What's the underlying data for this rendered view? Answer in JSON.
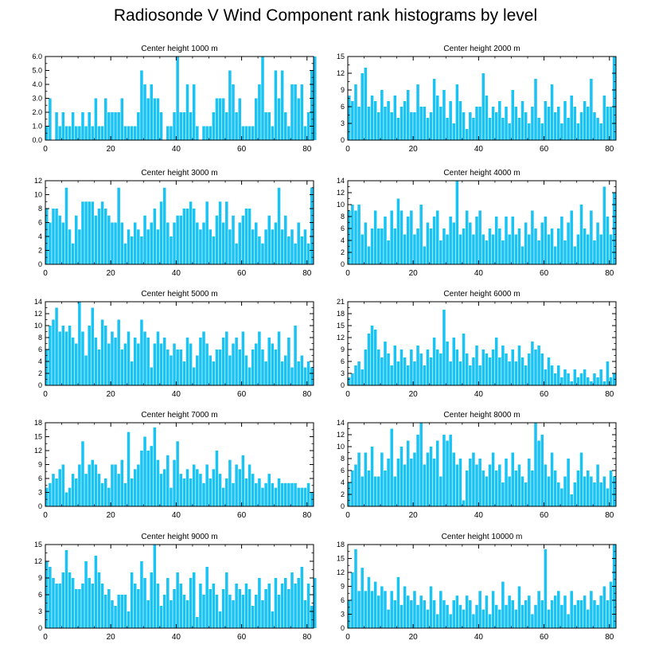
{
  "title": "Radiosonde V Wind Component rank histograms by level",
  "colors": {
    "bar": "#19c3f3",
    "axis": "#000000",
    "background": "#ffffff"
  },
  "chart_data": [
    {
      "type": "bar",
      "title": "Center height 1000 m",
      "xlim": [
        0,
        82
      ],
      "ylim": [
        0,
        6
      ],
      "xticks": [
        0,
        20,
        40,
        60,
        80
      ],
      "yticks": [
        "0.0",
        "1.0",
        "2.0",
        "3.0",
        "4.0",
        "5.0",
        "6.0"
      ],
      "values": [
        1,
        3,
        0,
        2,
        1,
        2,
        1,
        1,
        2,
        1,
        1,
        2,
        1,
        2,
        1,
        3,
        1,
        1,
        3,
        2,
        2,
        2,
        2,
        3,
        1,
        1,
        1,
        1,
        2,
        5,
        4,
        3,
        4,
        3,
        3,
        2,
        0,
        1,
        1,
        2,
        6,
        2,
        2,
        4,
        2,
        4,
        1,
        0,
        1,
        1,
        1,
        2,
        3,
        3,
        3,
        2,
        5,
        4,
        2,
        3,
        1,
        1,
        1,
        1,
        3,
        4,
        6,
        2,
        2,
        1,
        5,
        3,
        5,
        2,
        1,
        4,
        4,
        3,
        4,
        1,
        2,
        5,
        6
      ]
    },
    {
      "type": "bar",
      "title": "Center height 2000 m",
      "xlim": [
        0,
        82
      ],
      "ylim": [
        0,
        15
      ],
      "xticks": [
        0,
        20,
        40,
        60,
        80
      ],
      "yticks": [
        "0",
        "3",
        "6",
        "9",
        "12",
        "15"
      ],
      "values": [
        8,
        7,
        10,
        6,
        12,
        13,
        6,
        8,
        7,
        5,
        9,
        6,
        7,
        5,
        8,
        4,
        6,
        7,
        9,
        5,
        5,
        10,
        6,
        6,
        4,
        5,
        11,
        8,
        6,
        9,
        4,
        7,
        3,
        10,
        7,
        5,
        2,
        5,
        4,
        6,
        6,
        12,
        8,
        4,
        6,
        5,
        7,
        4,
        6,
        3,
        9,
        6,
        4,
        7,
        5,
        3,
        6,
        11,
        4,
        3,
        7,
        6,
        10,
        5,
        6,
        3,
        7,
        4,
        8,
        6,
        3,
        5,
        7,
        6,
        11,
        5,
        4,
        3,
        8,
        6,
        6,
        15
      ]
    },
    {
      "type": "bar",
      "title": "Center height 3000 m",
      "xlim": [
        0,
        82
      ],
      "ylim": [
        0,
        12
      ],
      "xticks": [
        0,
        20,
        40,
        60,
        80
      ],
      "yticks": [
        "0",
        "2",
        "4",
        "6",
        "8",
        "10",
        "12"
      ],
      "values": [
        8,
        6,
        8,
        8,
        7,
        6,
        11,
        5,
        3,
        7,
        5,
        9,
        9,
        9,
        9,
        7,
        8,
        9,
        8,
        7,
        6,
        6,
        11,
        6,
        3,
        5,
        4,
        6,
        5,
        4,
        7,
        5,
        6,
        8,
        5,
        9,
        11,
        6,
        4,
        6,
        7,
        7,
        8,
        8,
        9,
        8,
        6,
        5,
        6,
        9,
        5,
        4,
        7,
        9,
        6,
        9,
        5,
        7,
        3,
        6,
        7,
        8,
        8,
        5,
        6,
        4,
        3,
        5,
        7,
        5,
        6,
        11,
        5,
        7,
        4,
        5,
        3,
        6,
        4,
        5,
        3,
        11
      ]
    },
    {
      "type": "bar",
      "title": "Center height 4000 m",
      "xlim": [
        0,
        82
      ],
      "ylim": [
        0,
        14
      ],
      "xticks": [
        0,
        20,
        40,
        60,
        80
      ],
      "yticks": [
        "0",
        "2",
        "4",
        "6",
        "8",
        "10",
        "12",
        "14"
      ],
      "values": [
        9,
        10,
        9,
        10,
        5,
        7,
        3,
        6,
        9,
        6,
        6,
        8,
        4,
        9,
        6,
        11,
        9,
        5,
        8,
        9,
        5,
        6,
        10,
        3,
        7,
        6,
        8,
        9,
        4,
        6,
        5,
        8,
        7,
        14,
        5,
        6,
        9,
        7,
        5,
        8,
        9,
        5,
        4,
        6,
        5,
        8,
        6,
        4,
        8,
        5,
        8,
        5,
        6,
        3,
        7,
        5,
        9,
        6,
        4,
        7,
        8,
        5,
        6,
        3,
        6,
        8,
        4,
        7,
        9,
        3,
        5,
        10,
        6,
        5,
        9,
        4,
        7,
        5,
        13,
        8,
        5,
        12
      ]
    },
    {
      "type": "bar",
      "title": "Center height 5000 m",
      "xlim": [
        0,
        82
      ],
      "ylim": [
        0,
        14
      ],
      "xticks": [
        0,
        20,
        40,
        60,
        80
      ],
      "yticks": [
        "0",
        "2",
        "4",
        "6",
        "8",
        "10",
        "12",
        "14"
      ],
      "values": [
        6,
        10,
        11,
        13,
        9,
        10,
        9,
        10,
        8,
        7,
        14,
        9,
        5,
        10,
        13,
        8,
        6,
        11,
        10,
        7,
        9,
        8,
        11,
        6,
        7,
        9,
        4,
        8,
        7,
        11,
        9,
        8,
        3,
        7,
        9,
        7,
        8,
        6,
        5,
        7,
        6,
        6,
        4,
        8,
        7,
        3,
        5,
        8,
        9,
        7,
        5,
        4,
        6,
        6,
        8,
        9,
        5,
        7,
        8,
        6,
        9,
        5,
        3,
        6,
        7,
        9,
        6,
        4,
        8,
        7,
        6,
        9,
        4,
        5,
        8,
        3,
        10,
        4,
        5,
        3,
        4,
        3
      ]
    },
    {
      "type": "bar",
      "title": "Center height 6000 m",
      "xlim": [
        0,
        82
      ],
      "ylim": [
        0,
        21
      ],
      "xticks": [
        0,
        20,
        40,
        60,
        80
      ],
      "yticks": [
        "0",
        "3",
        "6",
        "9",
        "12",
        "15",
        "18",
        "21"
      ],
      "values": [
        2,
        3,
        5,
        6,
        4,
        9,
        13,
        15,
        14,
        9,
        7,
        11,
        8,
        5,
        10,
        6,
        9,
        7,
        5,
        9,
        6,
        10,
        8,
        5,
        9,
        7,
        12,
        9,
        8,
        19,
        11,
        6,
        12,
        9,
        6,
        13,
        8,
        5,
        7,
        10,
        5,
        9,
        8,
        7,
        9,
        12,
        7,
        10,
        8,
        6,
        9,
        6,
        10,
        7,
        5,
        8,
        11,
        9,
        10,
        8,
        4,
        7,
        5,
        3,
        5,
        2,
        4,
        3,
        1,
        4,
        2,
        3,
        4,
        2,
        1,
        3,
        2,
        4,
        1,
        6,
        2,
        3
      ]
    },
    {
      "type": "bar",
      "title": "Center height 7000 m",
      "xlim": [
        0,
        82
      ],
      "ylim": [
        0,
        18
      ],
      "xticks": [
        0,
        20,
        40,
        60,
        80
      ],
      "yticks": [
        "0",
        "3",
        "6",
        "9",
        "12",
        "15",
        "18"
      ],
      "values": [
        4,
        5,
        7,
        6,
        8,
        9,
        3,
        4,
        7,
        6,
        9,
        14,
        7,
        9,
        10,
        9,
        7,
        5,
        6,
        4,
        9,
        9,
        7,
        10,
        5,
        16,
        6,
        8,
        9,
        12,
        15,
        12,
        13,
        17,
        10,
        7,
        8,
        11,
        4,
        10,
        14,
        7,
        6,
        8,
        6,
        9,
        8,
        7,
        5,
        9,
        6,
        8,
        12,
        7,
        4,
        6,
        10,
        5,
        9,
        8,
        11,
        6,
        9,
        7,
        5,
        6,
        4,
        5,
        7,
        5,
        4,
        6,
        5,
        5,
        5,
        5,
        5,
        4,
        4,
        4,
        5,
        3
      ]
    },
    {
      "type": "bar",
      "title": "Center height 8000 m",
      "xlim": [
        0,
        82
      ],
      "ylim": [
        0,
        14
      ],
      "xticks": [
        0,
        20,
        40,
        60,
        80
      ],
      "yticks": [
        "0",
        "2",
        "4",
        "6",
        "8",
        "10",
        "12",
        "14"
      ],
      "values": [
        4,
        6,
        7,
        9,
        5,
        9,
        6,
        10,
        5,
        5,
        9,
        6,
        8,
        13,
        5,
        8,
        10,
        7,
        11,
        8,
        9,
        12,
        14,
        7,
        9,
        10,
        8,
        11,
        5,
        12,
        11,
        12,
        9,
        7,
        8,
        1,
        6,
        8,
        9,
        7,
        8,
        6,
        5,
        7,
        9,
        6,
        7,
        4,
        8,
        5,
        9,
        6,
        7,
        5,
        4,
        8,
        6,
        14,
        11,
        12,
        7,
        5,
        9,
        6,
        4,
        3,
        5,
        8,
        2,
        4,
        6,
        9,
        5,
        6,
        5,
        4,
        7,
        4,
        5,
        3,
        6,
        5
      ]
    },
    {
      "type": "bar",
      "title": "Center height 9000 m",
      "xlim": [
        0,
        82
      ],
      "ylim": [
        0,
        15
      ],
      "xticks": [
        0,
        20,
        40,
        60,
        80
      ],
      "yticks": [
        "0",
        "3",
        "6",
        "9",
        "12",
        "15"
      ],
      "values": [
        12,
        11,
        9,
        8,
        8,
        10,
        14,
        10,
        9,
        7,
        7,
        8,
        12,
        9,
        8,
        13,
        10,
        8,
        6,
        7,
        5,
        4,
        6,
        6,
        6,
        3,
        10,
        8,
        7,
        12,
        9,
        5,
        10,
        15,
        8,
        4,
        6,
        9,
        5,
        7,
        10,
        8,
        6,
        5,
        9,
        10,
        2,
        8,
        6,
        11,
        7,
        8,
        6,
        3,
        7,
        10,
        6,
        5,
        8,
        7,
        6,
        8,
        7,
        4,
        6,
        9,
        5,
        7,
        8,
        3,
        9,
        6,
        8,
        9,
        7,
        10,
        8,
        9,
        11,
        5,
        8,
        4,
        9
      ]
    },
    {
      "type": "bar",
      "title": "Center height 10000 m",
      "xlim": [
        0,
        82
      ],
      "ylim": [
        0,
        18
      ],
      "xticks": [
        0,
        20,
        40,
        60,
        80
      ],
      "yticks": [
        "0",
        "3",
        "6",
        "9",
        "12",
        "15",
        "18"
      ],
      "values": [
        6,
        12,
        17,
        8,
        13,
        8,
        11,
        8,
        10,
        7,
        9,
        8,
        4,
        8,
        6,
        11,
        5,
        9,
        7,
        6,
        8,
        5,
        7,
        6,
        4,
        9,
        6,
        3,
        8,
        6,
        5,
        3,
        6,
        7,
        5,
        4,
        7,
        6,
        3,
        5,
        8,
        4,
        7,
        3,
        8,
        5,
        4,
        10,
        5,
        7,
        6,
        4,
        9,
        5,
        6,
        7,
        3,
        5,
        8,
        6,
        17,
        4,
        6,
        7,
        8,
        5,
        7,
        3,
        8,
        5,
        6,
        6,
        7,
        4,
        8,
        6,
        5,
        7,
        9,
        6,
        10,
        18
      ]
    }
  ]
}
